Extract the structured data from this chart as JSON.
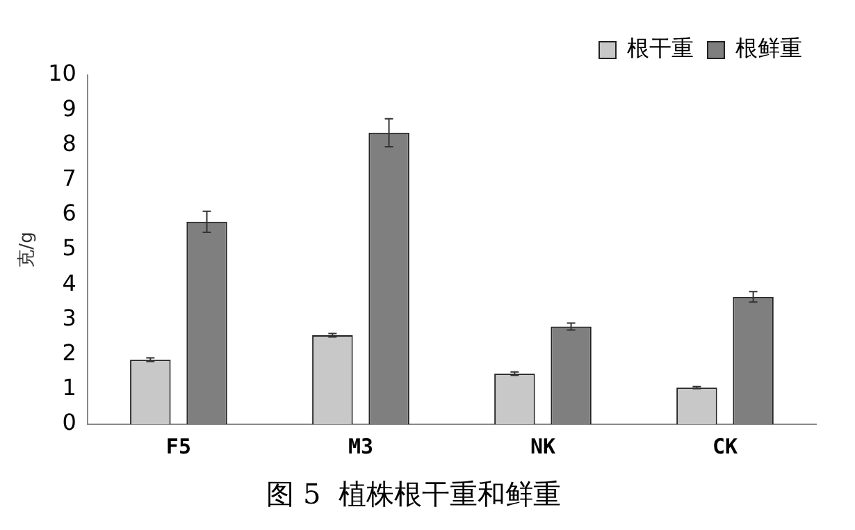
{
  "chart_data": {
    "type": "bar",
    "title": "图 5  植株根干重和鲜重",
    "ylabel": "克/g",
    "categories": [
      "F5",
      "M3",
      "NK",
      "CK"
    ],
    "series": [
      {
        "name": "根干重",
        "color": "#c8c8c8",
        "values": [
          1.85,
          2.55,
          1.45,
          1.05
        ],
        "errors": [
          0.05,
          0.05,
          0.05,
          0.03
        ]
      },
      {
        "name": "根鲜重",
        "color": "#7f7f7f",
        "values": [
          5.8,
          8.35,
          2.8,
          3.65
        ],
        "errors": [
          0.3,
          0.4,
          0.1,
          0.15
        ]
      }
    ],
    "ylim": [
      0,
      10
    ],
    "yticks": [
      0,
      1,
      2,
      3,
      4,
      5,
      6,
      7,
      8,
      9,
      10
    ],
    "grid": false,
    "legend": "top right"
  }
}
